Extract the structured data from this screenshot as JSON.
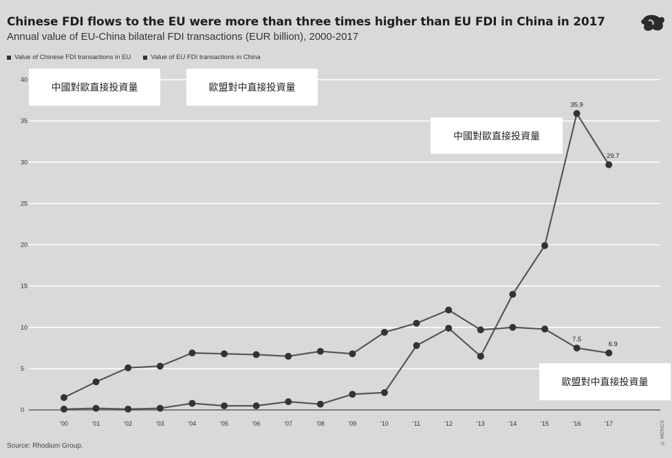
{
  "header": {
    "title": "Chinese FDI flows to the EU were more than three times higher than EU FDI in China in 2017",
    "subtitle": "Annual value of EU-China bilateral FDI transactions (EUR billion), 2000-2017"
  },
  "legend": [
    {
      "label": "Value of Chinese FDI transactions in EU"
    },
    {
      "label": "Value of EU FDI transactions in China"
    }
  ],
  "overlays": {
    "top_left": "中國對歐直接投資量",
    "top_mid": "歐盟對中直接投資量",
    "right_mid": "中國對歐直接投資量",
    "bottom_right": "歐盟對中直接投資量"
  },
  "footer": {
    "source": "Source: Rhodium Group.",
    "credit": "© MERICS"
  },
  "colors": {
    "background": "#d9d9d9",
    "line": "#555555",
    "marker": "#333333",
    "grid": "#ffffff"
  },
  "chart_data": {
    "type": "line",
    "categories": [
      "'00",
      "'01",
      "'02",
      "'03",
      "'04",
      "'05",
      "'06",
      "'07",
      "'08",
      "'09",
      "'10",
      "'11",
      "'12",
      "'13",
      "'14",
      "'15",
      "'16",
      "'17"
    ],
    "ylim": [
      0,
      40
    ],
    "yticks": [
      0,
      5,
      10,
      15,
      20,
      25,
      30,
      35,
      40
    ],
    "grid": true,
    "series": [
      {
        "name": "Value of Chinese FDI transactions in EU",
        "values": [
          0.1,
          0.2,
          0.1,
          0.2,
          0.8,
          0.5,
          0.5,
          1.0,
          0.7,
          1.9,
          2.1,
          7.8,
          9.9,
          6.5,
          14.0,
          19.9,
          35.9,
          29.7
        ],
        "labels": {
          "16": "35.9",
          "17": "29.7"
        }
      },
      {
        "name": "Value of EU FDI transactions in China",
        "values": [
          1.5,
          3.4,
          5.1,
          5.3,
          6.9,
          6.8,
          6.7,
          6.5,
          7.1,
          6.8,
          9.4,
          10.5,
          12.1,
          9.7,
          10.0,
          9.8,
          7.5,
          6.9
        ],
        "labels": {
          "16": "7.5",
          "17": "6.9"
        }
      }
    ]
  }
}
